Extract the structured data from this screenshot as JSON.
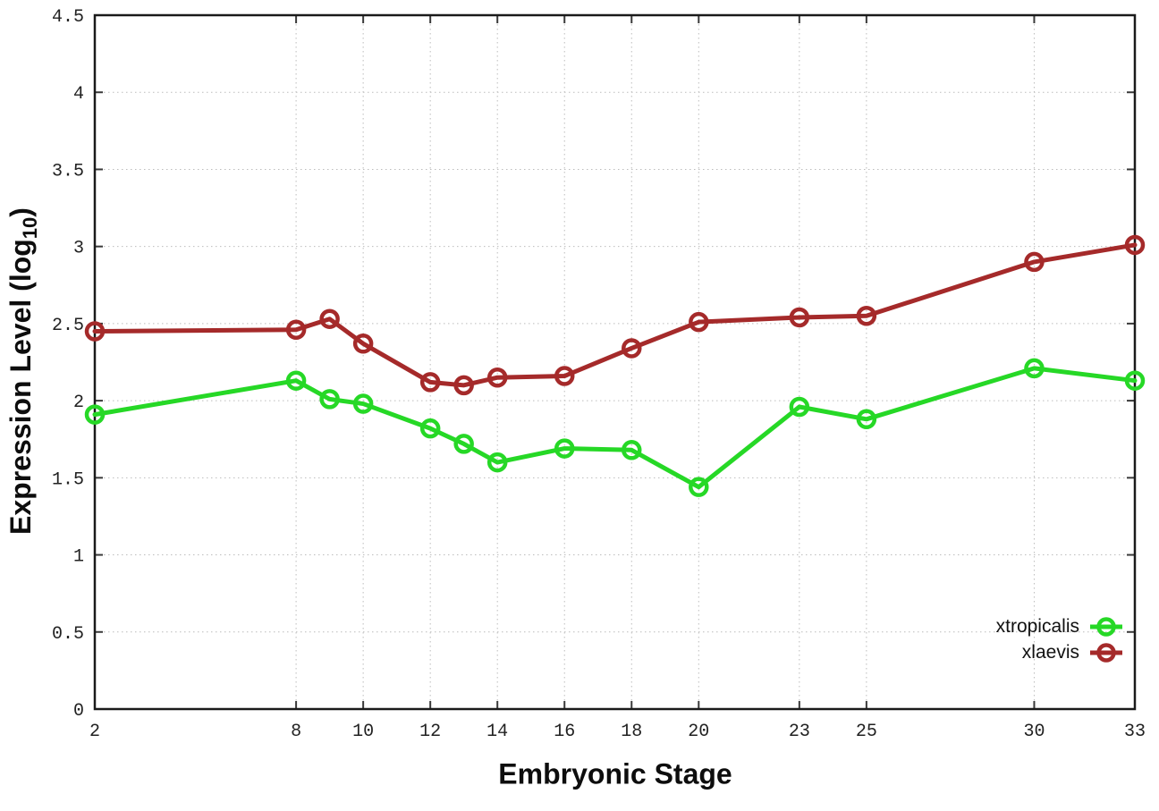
{
  "figure": {
    "background": "#ffffff",
    "axis_color": "#1a1a1a",
    "tick_color": "#3a3a3a",
    "grid_color": "#bcbcbc",
    "tick_label_color": "#222222"
  },
  "chart_data": {
    "type": "line",
    "title": "",
    "xlabel": "Embryonic Stage",
    "ylabel": "Expression Level (log10)",
    "ylabel_parts": {
      "pre": "Expression Level (log",
      "sub": "10",
      "post": ")"
    },
    "xlim": [
      2,
      33
    ],
    "ylim": [
      0,
      4.5
    ],
    "grid": true,
    "legend_position": "inside-bottom-right",
    "x_tick_labels": [
      "2",
      "8",
      "10",
      "12",
      "14",
      "16",
      "18",
      "20",
      "23",
      "25",
      "30",
      "33"
    ],
    "x_tick_values": [
      2,
      8,
      10,
      12,
      14,
      16,
      18,
      20,
      23,
      25,
      30,
      33
    ],
    "y_tick_labels": [
      "0",
      "0.5",
      "1",
      "1.5",
      "2",
      "2.5",
      "3",
      "3.5",
      "4",
      "4.5"
    ],
    "y_tick_values": [
      0,
      0.5,
      1,
      1.5,
      2,
      2.5,
      3,
      3.5,
      4,
      4.5
    ],
    "x": [
      2,
      8,
      9,
      10,
      12,
      13,
      14,
      16,
      18,
      20,
      23,
      25,
      30,
      33
    ],
    "series": [
      {
        "name": "xtropicalis",
        "color": "#26d826",
        "values": [
          1.91,
          2.13,
          2.01,
          1.98,
          1.82,
          1.72,
          1.6,
          1.69,
          1.68,
          1.44,
          1.96,
          1.88,
          2.21,
          2.13
        ]
      },
      {
        "name": "xlaevis",
        "color": "#a52a2a",
        "values": [
          2.45,
          2.46,
          2.53,
          2.37,
          2.12,
          2.1,
          2.15,
          2.16,
          2.34,
          2.51,
          2.54,
          2.55,
          2.9,
          3.01
        ]
      }
    ]
  }
}
